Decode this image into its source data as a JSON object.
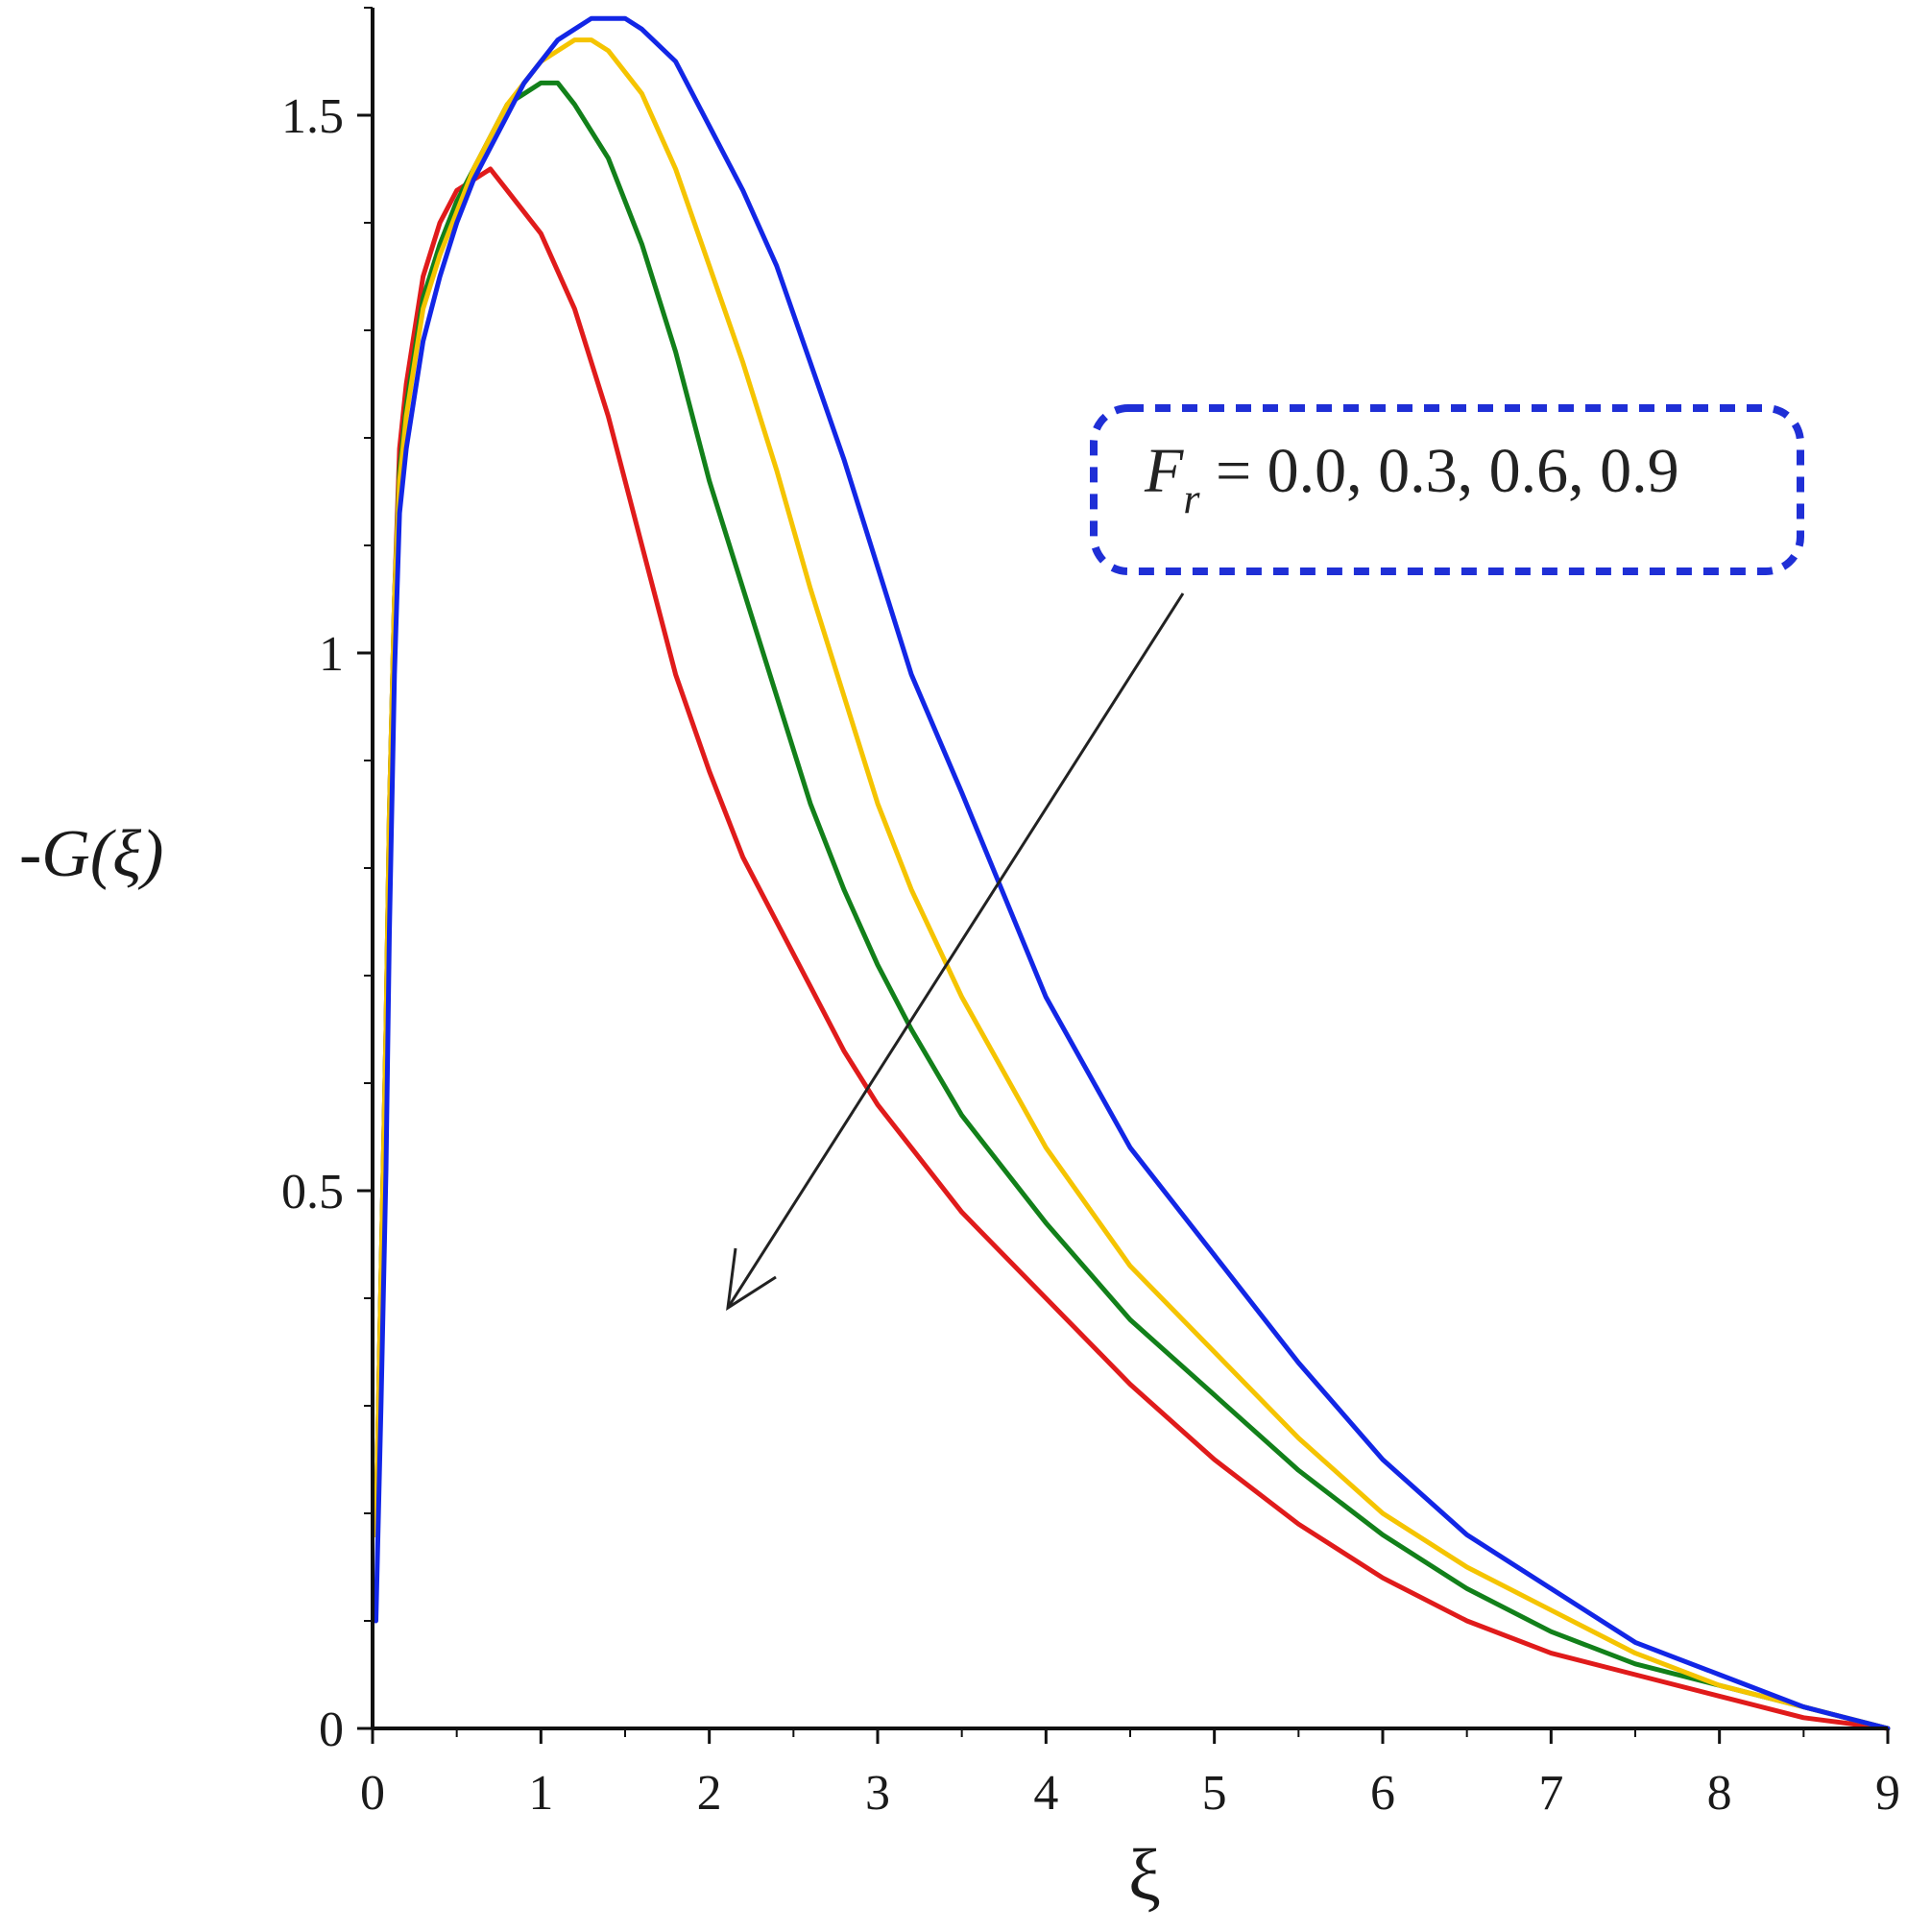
{
  "chart_data": {
    "type": "line",
    "xlabel": "ξ",
    "ylabel": "-G(ξ)",
    "xlim": [
      0,
      9
    ],
    "ylim": [
      0,
      1.6
    ],
    "x_ticks": [
      "0",
      "1",
      "2",
      "3",
      "4",
      "5",
      "6",
      "7",
      "8",
      "9"
    ],
    "y_ticks": [
      "0",
      "0.5",
      "1",
      "1.5"
    ],
    "annotation": {
      "symbol": "F",
      "subscript": "r",
      "text": " = 0.0, 0.3, 0.6, 0.9",
      "box_color": "#1f2fd6",
      "arrow_color": "#222222"
    },
    "series": [
      {
        "color": "#e01b1b",
        "x": [
          0.02,
          0.05,
          0.08,
          0.1,
          0.13,
          0.16,
          0.2,
          0.25,
          0.3,
          0.4,
          0.5,
          0.6,
          0.7,
          0.8,
          1.0,
          1.2,
          1.4,
          1.6,
          1.8,
          2.0,
          2.2,
          2.4,
          2.6,
          2.8,
          3.0,
          3.2,
          3.5,
          4.0,
          4.5,
          5.0,
          5.5,
          6.0,
          6.5,
          7.0,
          7.5,
          8.0,
          8.5,
          9.0
        ],
        "y": [
          0.18,
          0.42,
          0.65,
          0.85,
          1.05,
          1.19,
          1.25,
          1.3,
          1.35,
          1.4,
          1.43,
          1.44,
          1.45,
          1.43,
          1.39,
          1.32,
          1.22,
          1.1,
          0.98,
          0.89,
          0.81,
          0.75,
          0.69,
          0.63,
          0.58,
          0.54,
          0.48,
          0.4,
          0.32,
          0.25,
          0.19,
          0.14,
          0.1,
          0.07,
          0.05,
          0.03,
          0.01,
          0.0
        ]
      },
      {
        "color": "#12801a",
        "x": [
          0.02,
          0.05,
          0.08,
          0.1,
          0.13,
          0.16,
          0.2,
          0.25,
          0.3,
          0.4,
          0.5,
          0.6,
          0.7,
          0.8,
          0.9,
          1.0,
          1.05,
          1.1,
          1.2,
          1.4,
          1.6,
          1.8,
          2.0,
          2.2,
          2.4,
          2.6,
          2.8,
          3.0,
          3.2,
          3.5,
          4.0,
          4.5,
          5.0,
          5.5,
          6.0,
          6.5,
          7.0,
          7.5,
          8.0,
          8.5,
          9.0
        ],
        "y": [
          0.18,
          0.42,
          0.65,
          0.85,
          1.05,
          1.17,
          1.23,
          1.28,
          1.33,
          1.38,
          1.42,
          1.45,
          1.48,
          1.51,
          1.52,
          1.53,
          1.53,
          1.53,
          1.51,
          1.46,
          1.38,
          1.28,
          1.16,
          1.06,
          0.96,
          0.86,
          0.78,
          0.71,
          0.65,
          0.57,
          0.47,
          0.38,
          0.31,
          0.24,
          0.18,
          0.13,
          0.09,
          0.06,
          0.04,
          0.02,
          0.0
        ]
      },
      {
        "color": "#f5c400",
        "x": [
          0.02,
          0.05,
          0.08,
          0.1,
          0.13,
          0.16,
          0.2,
          0.25,
          0.3,
          0.4,
          0.5,
          0.6,
          0.7,
          0.8,
          0.9,
          1.0,
          1.1,
          1.2,
          1.3,
          1.4,
          1.6,
          1.8,
          2.0,
          2.2,
          2.4,
          2.6,
          2.8,
          3.0,
          3.2,
          3.5,
          4.0,
          4.5,
          5.0,
          5.5,
          6.0,
          6.5,
          7.0,
          7.5,
          8.0,
          8.5,
          9.0
        ],
        "y": [
          0.18,
          0.42,
          0.65,
          0.85,
          1.05,
          1.16,
          1.22,
          1.27,
          1.32,
          1.37,
          1.41,
          1.45,
          1.48,
          1.51,
          1.53,
          1.55,
          1.56,
          1.57,
          1.57,
          1.56,
          1.52,
          1.45,
          1.36,
          1.27,
          1.17,
          1.06,
          0.96,
          0.86,
          0.78,
          0.68,
          0.54,
          0.43,
          0.35,
          0.27,
          0.2,
          0.15,
          0.11,
          0.07,
          0.04,
          0.02,
          0.0
        ]
      },
      {
        "color": "#1226e6",
        "x": [
          0.02,
          0.05,
          0.08,
          0.1,
          0.13,
          0.16,
          0.2,
          0.25,
          0.3,
          0.4,
          0.5,
          0.6,
          0.7,
          0.8,
          0.9,
          1.0,
          1.1,
          1.2,
          1.3,
          1.4,
          1.5,
          1.6,
          1.8,
          2.0,
          2.2,
          2.4,
          2.6,
          2.8,
          3.0,
          3.2,
          3.5,
          4.0,
          4.5,
          5.0,
          5.5,
          6.0,
          6.5,
          7.0,
          7.5,
          8.0,
          8.5,
          9.0
        ],
        "y": [
          0.1,
          0.3,
          0.52,
          0.74,
          0.98,
          1.13,
          1.19,
          1.24,
          1.29,
          1.35,
          1.4,
          1.44,
          1.47,
          1.5,
          1.53,
          1.55,
          1.57,
          1.58,
          1.59,
          1.59,
          1.59,
          1.58,
          1.55,
          1.49,
          1.43,
          1.36,
          1.27,
          1.18,
          1.08,
          0.98,
          0.87,
          0.68,
          0.54,
          0.44,
          0.34,
          0.25,
          0.18,
          0.13,
          0.08,
          0.05,
          0.02,
          0.0
        ]
      }
    ]
  }
}
